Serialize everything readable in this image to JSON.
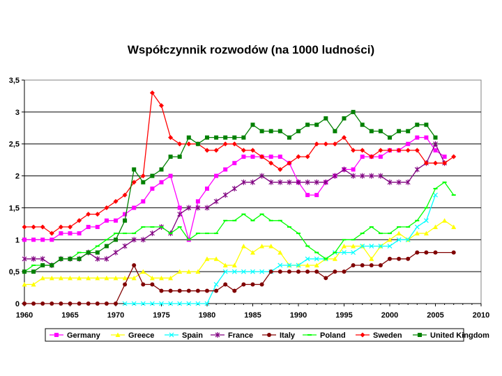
{
  "chart_data": {
    "type": "line",
    "title": "Współczynnik rozwodów (na 1000 ludności)",
    "xlabel": "",
    "ylabel": "",
    "xlim": [
      1960,
      2010
    ],
    "ylim": [
      0,
      3.5
    ],
    "x_ticks": [
      1960,
      1965,
      1970,
      1975,
      1980,
      1985,
      1990,
      1995,
      2000,
      2005,
      2010
    ],
    "y_ticks": [
      0,
      0.5,
      1,
      1.5,
      2,
      2.5,
      3,
      3.5
    ],
    "y_tick_labels": [
      "0",
      "0,5",
      "1",
      "1,5",
      "2",
      "2,5",
      "3",
      "3,5"
    ],
    "grid": "horizontal",
    "legend_position": "bottom",
    "series": [
      {
        "name": "Germany",
        "color": "#ff00ff",
        "marker": "square",
        "x": [
          1960,
          1961,
          1962,
          1963,
          1964,
          1965,
          1966,
          1967,
          1968,
          1969,
          1970,
          1971,
          1972,
          1973,
          1974,
          1975,
          1976,
          1977,
          1978,
          1979,
          1980,
          1981,
          1982,
          1983,
          1984,
          1985,
          1986,
          1987,
          1988,
          1989,
          1990,
          1991,
          1992,
          1993,
          1994,
          1995,
          1996,
          1997,
          1998,
          1999,
          2000,
          2001,
          2002,
          2003,
          2004,
          2005,
          2006
        ],
        "y": [
          1.0,
          1.0,
          1.0,
          1.0,
          1.1,
          1.1,
          1.1,
          1.2,
          1.2,
          1.3,
          1.3,
          1.4,
          1.5,
          1.6,
          1.8,
          1.9,
          2.0,
          1.5,
          1.0,
          1.6,
          1.8,
          2.0,
          2.1,
          2.2,
          2.3,
          2.3,
          2.3,
          2.3,
          2.3,
          2.2,
          1.9,
          1.7,
          1.7,
          1.9,
          2.0,
          2.1,
          2.1,
          2.3,
          2.3,
          2.3,
          2.4,
          2.4,
          2.5,
          2.6,
          2.6,
          2.4,
          2.3
        ]
      },
      {
        "name": "Greece",
        "color": "#ffff00",
        "marker": "triangle",
        "x": [
          1960,
          1961,
          1962,
          1963,
          1964,
          1965,
          1966,
          1967,
          1968,
          1969,
          1970,
          1971,
          1972,
          1973,
          1974,
          1975,
          1976,
          1977,
          1978,
          1979,
          1980,
          1981,
          1982,
          1983,
          1984,
          1985,
          1986,
          1987,
          1988,
          1989,
          1990,
          1991,
          1992,
          1993,
          1994,
          1995,
          1996,
          1997,
          1998,
          1999,
          2000,
          2001,
          2002,
          2003,
          2004,
          2005,
          2006,
          2007
        ],
        "y": [
          0.3,
          0.3,
          0.4,
          0.4,
          0.4,
          0.4,
          0.4,
          0.4,
          0.4,
          0.4,
          0.4,
          0.4,
          0.4,
          0.5,
          0.4,
          0.4,
          0.4,
          0.5,
          0.5,
          0.5,
          0.7,
          0.7,
          0.6,
          0.6,
          0.9,
          0.8,
          0.9,
          0.9,
          0.8,
          0.6,
          0.6,
          0.6,
          0.6,
          0.7,
          0.7,
          0.9,
          0.9,
          0.9,
          0.7,
          0.9,
          1.0,
          1.1,
          1.0,
          1.1,
          1.1,
          1.2,
          1.3,
          1.2
        ]
      },
      {
        "name": "Spain",
        "color": "#00ffff",
        "marker": "x",
        "x": [
          1971,
          1972,
          1973,
          1974,
          1975,
          1976,
          1977,
          1978,
          1979,
          1980,
          1981,
          1982,
          1983,
          1984,
          1985,
          1986,
          1987,
          1988,
          1989,
          1990,
          1991,
          1992,
          1993,
          1994,
          1995,
          1996,
          1997,
          1998,
          1999,
          2000,
          2001,
          2002,
          2003,
          2004,
          2005
        ],
        "y": [
          0.0,
          0.0,
          0.0,
          0.0,
          0.0,
          0.0,
          0.0,
          0.0,
          0.0,
          0.0,
          0.3,
          0.5,
          0.5,
          0.5,
          0.5,
          0.5,
          0.5,
          0.6,
          0.6,
          0.6,
          0.7,
          0.7,
          0.7,
          0.8,
          0.8,
          0.8,
          0.9,
          0.9,
          0.9,
          0.9,
          1.0,
          1.0,
          1.2,
          1.3,
          1.7
        ]
      },
      {
        "name": "France",
        "color": "#800080",
        "marker": "star",
        "x": [
          1960,
          1961,
          1962,
          1963,
          1964,
          1965,
          1966,
          1967,
          1968,
          1969,
          1970,
          1971,
          1972,
          1973,
          1974,
          1975,
          1976,
          1977,
          1978,
          1979,
          1980,
          1981,
          1982,
          1983,
          1984,
          1985,
          1986,
          1987,
          1988,
          1989,
          1990,
          1991,
          1992,
          1993,
          1994,
          1995,
          1996,
          1997,
          1998,
          1999,
          2000,
          2001,
          2002,
          2003,
          2004,
          2005,
          2006
        ],
        "y": [
          0.7,
          0.7,
          0.7,
          0.6,
          0.7,
          0.7,
          0.7,
          0.8,
          0.7,
          0.7,
          0.8,
          0.9,
          1.0,
          1.0,
          1.1,
          1.2,
          1.1,
          1.4,
          1.5,
          1.5,
          1.5,
          1.6,
          1.7,
          1.8,
          1.9,
          1.9,
          2.0,
          1.9,
          1.9,
          1.9,
          1.9,
          1.9,
          1.9,
          1.9,
          2.0,
          2.1,
          2.0,
          2.0,
          2.0,
          2.0,
          1.9,
          1.9,
          1.9,
          2.1,
          2.2,
          2.5,
          2.2
        ]
      },
      {
        "name": "Italy",
        "color": "#800000",
        "marker": "circle",
        "x": [
          1960,
          1961,
          1962,
          1963,
          1964,
          1965,
          1966,
          1967,
          1968,
          1969,
          1970,
          1971,
          1972,
          1973,
          1974,
          1975,
          1976,
          1977,
          1978,
          1979,
          1980,
          1981,
          1982,
          1983,
          1984,
          1985,
          1986,
          1987,
          1988,
          1989,
          1990,
          1991,
          1992,
          1993,
          1994,
          1995,
          1996,
          1997,
          1998,
          1999,
          2000,
          2001,
          2002,
          2003,
          2004,
          2005,
          2007
        ],
        "y": [
          0.0,
          0.0,
          0.0,
          0.0,
          0.0,
          0.0,
          0.0,
          0.0,
          0.0,
          0.0,
          0.0,
          0.3,
          0.6,
          0.3,
          0.3,
          0.2,
          0.2,
          0.2,
          0.2,
          0.2,
          0.2,
          0.2,
          0.3,
          0.2,
          0.3,
          0.3,
          0.3,
          0.5,
          0.5,
          0.5,
          0.5,
          0.5,
          0.5,
          0.4,
          0.5,
          0.5,
          0.6,
          0.6,
          0.6,
          0.6,
          0.7,
          0.7,
          0.7,
          0.8,
          0.8,
          0.8,
          0.8
        ]
      },
      {
        "name": "Poland",
        "color": "#00ff00",
        "marker": "dash",
        "x": [
          1960,
          1961,
          1962,
          1963,
          1964,
          1965,
          1966,
          1967,
          1968,
          1969,
          1970,
          1971,
          1972,
          1973,
          1974,
          1975,
          1976,
          1977,
          1978,
          1979,
          1980,
          1981,
          1982,
          1983,
          1984,
          1985,
          1986,
          1987,
          1988,
          1989,
          1990,
          1991,
          1992,
          1993,
          1994,
          1995,
          1996,
          1997,
          1998,
          1999,
          2000,
          2001,
          2002,
          2003,
          2004,
          2005,
          2006,
          2007
        ],
        "y": [
          0.5,
          0.6,
          0.6,
          0.6,
          0.7,
          0.7,
          0.8,
          0.8,
          0.9,
          1.0,
          1.1,
          1.1,
          1.1,
          1.2,
          1.2,
          1.2,
          1.1,
          1.2,
          1.0,
          1.1,
          1.1,
          1.1,
          1.3,
          1.3,
          1.4,
          1.3,
          1.4,
          1.3,
          1.3,
          1.2,
          1.1,
          0.9,
          0.8,
          0.7,
          0.8,
          1.0,
          1.0,
          1.1,
          1.2,
          1.1,
          1.1,
          1.2,
          1.2,
          1.3,
          1.5,
          1.8,
          1.9,
          1.7
        ]
      },
      {
        "name": "Sweden",
        "color": "#ff0000",
        "marker": "diamond",
        "x": [
          1960,
          1961,
          1962,
          1963,
          1964,
          1965,
          1966,
          1967,
          1968,
          1969,
          1970,
          1971,
          1972,
          1973,
          1974,
          1975,
          1976,
          1977,
          1978,
          1979,
          1980,
          1981,
          1982,
          1983,
          1984,
          1985,
          1986,
          1987,
          1988,
          1989,
          1990,
          1991,
          1992,
          1993,
          1994,
          1995,
          1996,
          1997,
          1998,
          1999,
          2000,
          2001,
          2002,
          2003,
          2004,
          2005,
          2006,
          2007
        ],
        "y": [
          1.2,
          1.2,
          1.2,
          1.1,
          1.2,
          1.2,
          1.3,
          1.4,
          1.4,
          1.5,
          1.6,
          1.7,
          1.9,
          2.0,
          3.3,
          3.1,
          2.6,
          2.5,
          2.5,
          2.5,
          2.4,
          2.4,
          2.5,
          2.5,
          2.4,
          2.4,
          2.3,
          2.2,
          2.1,
          2.2,
          2.3,
          2.3,
          2.5,
          2.5,
          2.5,
          2.6,
          2.4,
          2.4,
          2.3,
          2.4,
          2.4,
          2.4,
          2.4,
          2.4,
          2.2,
          2.2,
          2.2,
          2.3
        ]
      },
      {
        "name": "United Kingdom",
        "color": "#008000",
        "marker": "square",
        "x": [
          1960,
          1961,
          1962,
          1963,
          1964,
          1965,
          1966,
          1967,
          1968,
          1969,
          1970,
          1971,
          1972,
          1973,
          1974,
          1975,
          1976,
          1977,
          1978,
          1979,
          1980,
          1981,
          1982,
          1983,
          1984,
          1985,
          1986,
          1987,
          1988,
          1989,
          1990,
          1991,
          1992,
          1993,
          1994,
          1995,
          1996,
          1997,
          1998,
          1999,
          2000,
          2001,
          2002,
          2003,
          2004,
          2005
        ],
        "y": [
          0.5,
          0.5,
          0.6,
          0.6,
          0.7,
          0.7,
          0.7,
          0.8,
          0.8,
          0.9,
          1.0,
          1.3,
          2.1,
          1.9,
          2.0,
          2.1,
          2.3,
          2.3,
          2.6,
          2.5,
          2.6,
          2.6,
          2.6,
          2.6,
          2.6,
          2.8,
          2.7,
          2.7,
          2.7,
          2.6,
          2.7,
          2.8,
          2.8,
          2.9,
          2.7,
          2.9,
          3.0,
          2.8,
          2.7,
          2.7,
          2.6,
          2.7,
          2.7,
          2.8,
          2.8,
          2.6
        ]
      }
    ]
  }
}
